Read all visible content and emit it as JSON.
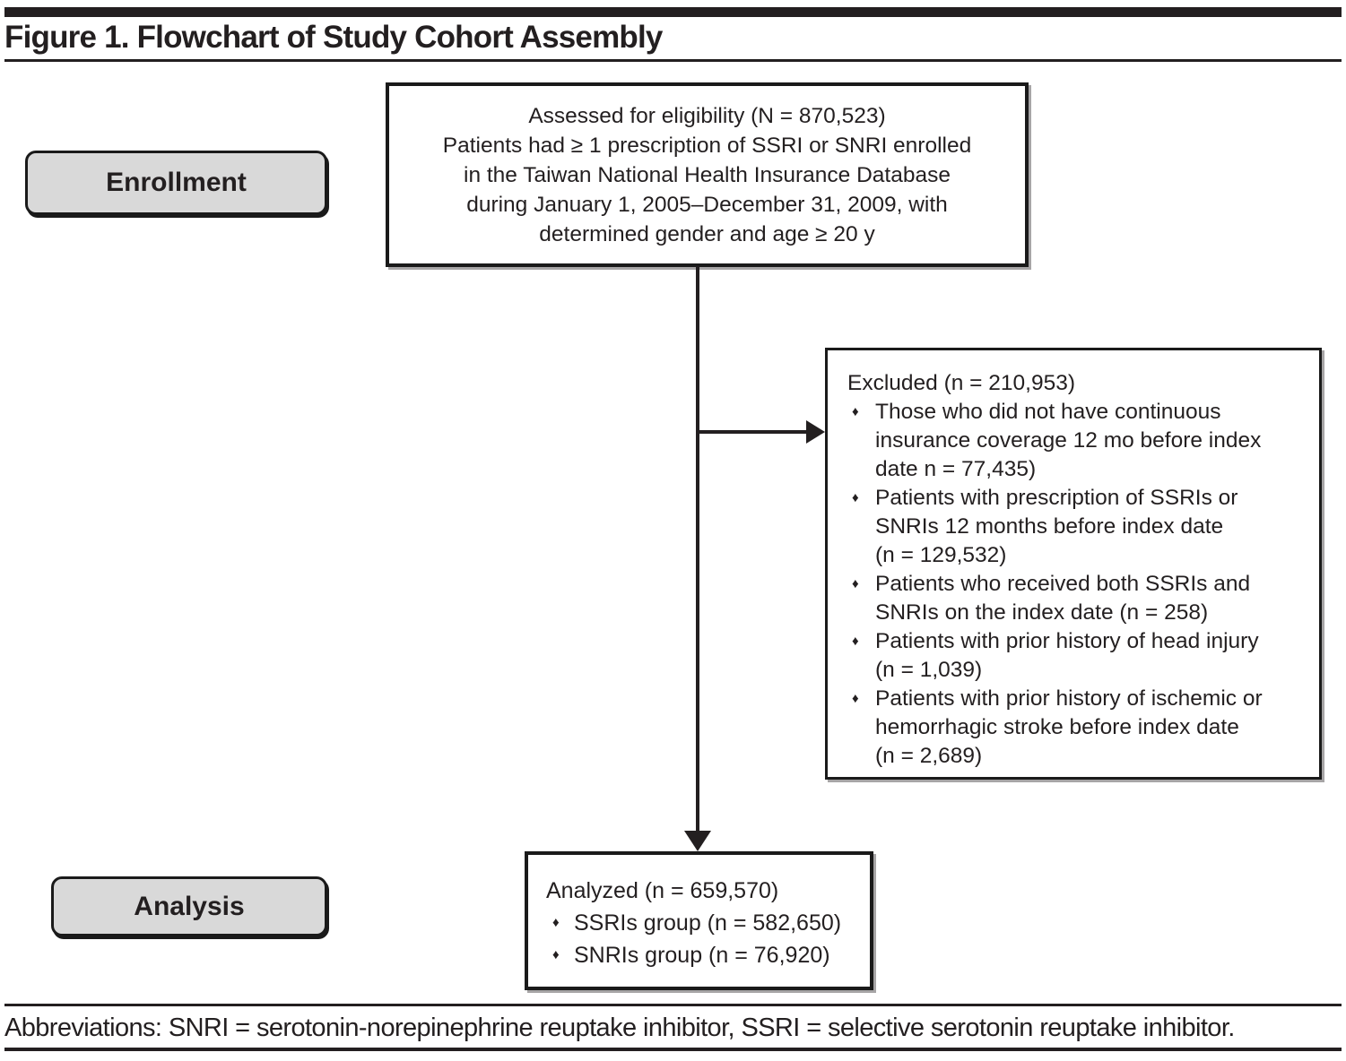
{
  "title": "Figure 1. Flowchart of Study Cohort Assembly",
  "bullet_char": "♦",
  "stages": {
    "enrollment": "Enrollment",
    "analysis": "Analysis"
  },
  "boxes": {
    "eligibility": {
      "lines": [
        "Assessed for eligibility (N = 870,523)",
        "Patients had ≥ 1 prescription of SSRI or SNRI enrolled",
        "in the Taiwan National Health Insurance Database",
        "during January 1, 2005–December 31, 2009, with",
        "determined gender and age ≥ 20 y"
      ]
    },
    "excluded": {
      "heading": "Excluded (n = 210,953)",
      "bullets": [
        [
          "Those who did not have continuous",
          "insurance coverage 12 mo before index",
          "date n = 77,435)"
        ],
        [
          "Patients with prescription of SSRIs or",
          "SNRIs 12 months before index date",
          "(n = 129,532)"
        ],
        [
          "Patients who received both SSRIs and",
          "SNRIs on the index date (n = 258)"
        ],
        [
          "Patients with prior history of head injury",
          "(n = 1,039)"
        ],
        [
          "Patients with prior history of ischemic or",
          "hemorrhagic stroke before index date",
          "(n = 2,689)"
        ]
      ]
    },
    "analyzed": {
      "heading": "Analyzed (n = 659,570)",
      "bullets": [
        "SSRIs group (n = 582,650)",
        "SNRIs group (n = 76,920)"
      ]
    }
  },
  "footer": "Abbreviations: SNRI = serotonin-norepinephrine reuptake inhibitor, SSRI = selective serotonin reuptake inhibitor.",
  "colors": {
    "text": "#231f20",
    "border": "#1a1a1a",
    "stage_fill": "#d9d9d9"
  }
}
